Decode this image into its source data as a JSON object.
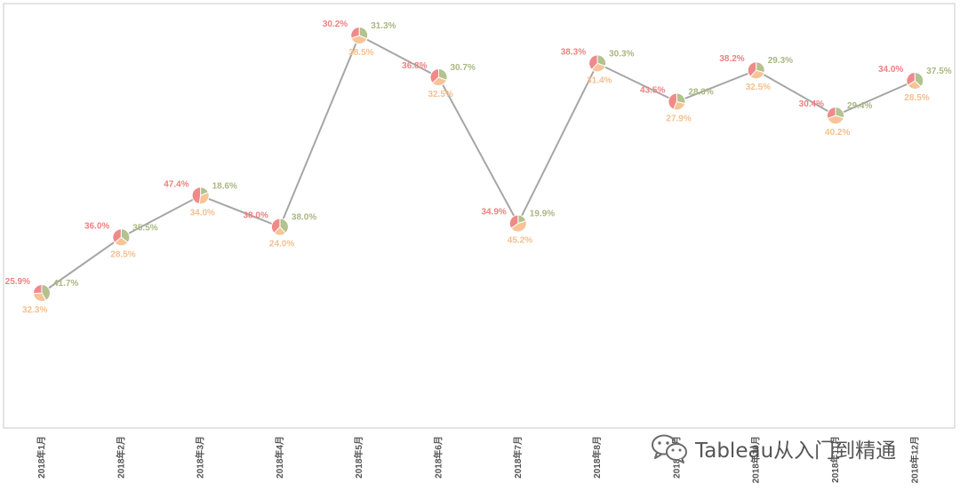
{
  "chart_data": {
    "type": "line",
    "title": "",
    "xlabel": "",
    "ylabel": "",
    "categories": [
      "2018年1月",
      "2018年2月",
      "2018年3月",
      "2018年4月",
      "2018年5月",
      "2018年6月",
      "2018年7月",
      "2018年8月",
      "2018年9月",
      "2018年10月",
      "2018年11月",
      "2018年12月"
    ],
    "ylim": [
      0,
      100
    ],
    "grid": false,
    "series": [
      {
        "values": [
          20,
          36,
          48,
          39,
          94,
          82,
          40,
          86,
          75,
          84,
          71,
          81
        ],
        "color": "#a6a6a6"
      }
    ],
    "point_pies": [
      {
        "segments": [
          25.9,
          41.7,
          32.3
        ]
      },
      {
        "segments": [
          36.0,
          35.5,
          28.5
        ]
      },
      {
        "segments": [
          47.4,
          18.6,
          34.0
        ]
      },
      {
        "segments": [
          38.0,
          38.0,
          24.0
        ]
      },
      {
        "segments": [
          30.2,
          31.3,
          38.5
        ]
      },
      {
        "segments": [
          36.8,
          30.7,
          32.5
        ]
      },
      {
        "segments": [
          34.9,
          19.9,
          45.2
        ]
      },
      {
        "segments": [
          38.3,
          30.3,
          31.4
        ]
      },
      {
        "segments": [
          43.5,
          28.6,
          27.9
        ]
      },
      {
        "segments": [
          38.2,
          29.3,
          32.5
        ]
      },
      {
        "segments": [
          30.4,
          29.4,
          40.2
        ]
      },
      {
        "segments": [
          34.0,
          37.5,
          28.5
        ]
      }
    ],
    "segment_colors": [
      "#f08a8a",
      "#b3c28e",
      "#f7c497"
    ],
    "label_colors": [
      "#f08080",
      "#a8b882",
      "#f5bf8e"
    ]
  },
  "watermark": {
    "text": "Tableau从入门到精通",
    "icon": "wechat-icon"
  }
}
